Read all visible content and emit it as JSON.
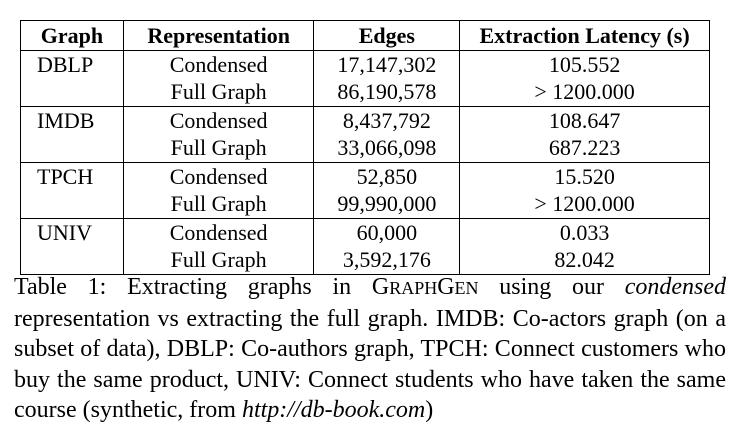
{
  "table": {
    "headers": [
      "Graph",
      "Representation",
      "Edges",
      "Extraction Latency (s)"
    ],
    "rows": [
      {
        "graph": "DBLP",
        "representation": "Condensed",
        "edges": "17,147,302",
        "latency": "105.552"
      },
      {
        "graph": "",
        "representation": "Full Graph",
        "edges": "86,190,578",
        "latency": "> 1200.000"
      },
      {
        "graph": "IMDB",
        "representation": "Condensed",
        "edges": "8,437,792",
        "latency": "108.647"
      },
      {
        "graph": "",
        "representation": "Full Graph",
        "edges": "33,066,098",
        "latency": "687.223"
      },
      {
        "graph": "TPCH",
        "representation": "Condensed",
        "edges": "52,850",
        "latency": "15.520"
      },
      {
        "graph": "",
        "representation": "Full Graph",
        "edges": "99,990,000",
        "latency": "> 1200.000"
      },
      {
        "graph": "UNIV",
        "representation": "Condensed",
        "edges": "60,000",
        "latency": "0.033"
      },
      {
        "graph": "",
        "representation": "Full Graph",
        "edges": "3,592,176",
        "latency": "82.042"
      }
    ]
  },
  "caption": {
    "prefix": "Table 1:  Extracting graphs in ",
    "system_first_g": "G",
    "system_raph": "RAPH",
    "system_g": "G",
    "system_en": "EN",
    "mid": " using our ",
    "emphasis": "condensed",
    "rest": " representation vs extracting the full graph. IMDB: Co-actors graph (on a subset of data), DBLP: Co-authors graph, TPCH: Connect customers who buy the same product, UNIV: Connect students who have taken the same course (synthetic, from ",
    "url": "http://db-book.com",
    "suffix": ")"
  }
}
